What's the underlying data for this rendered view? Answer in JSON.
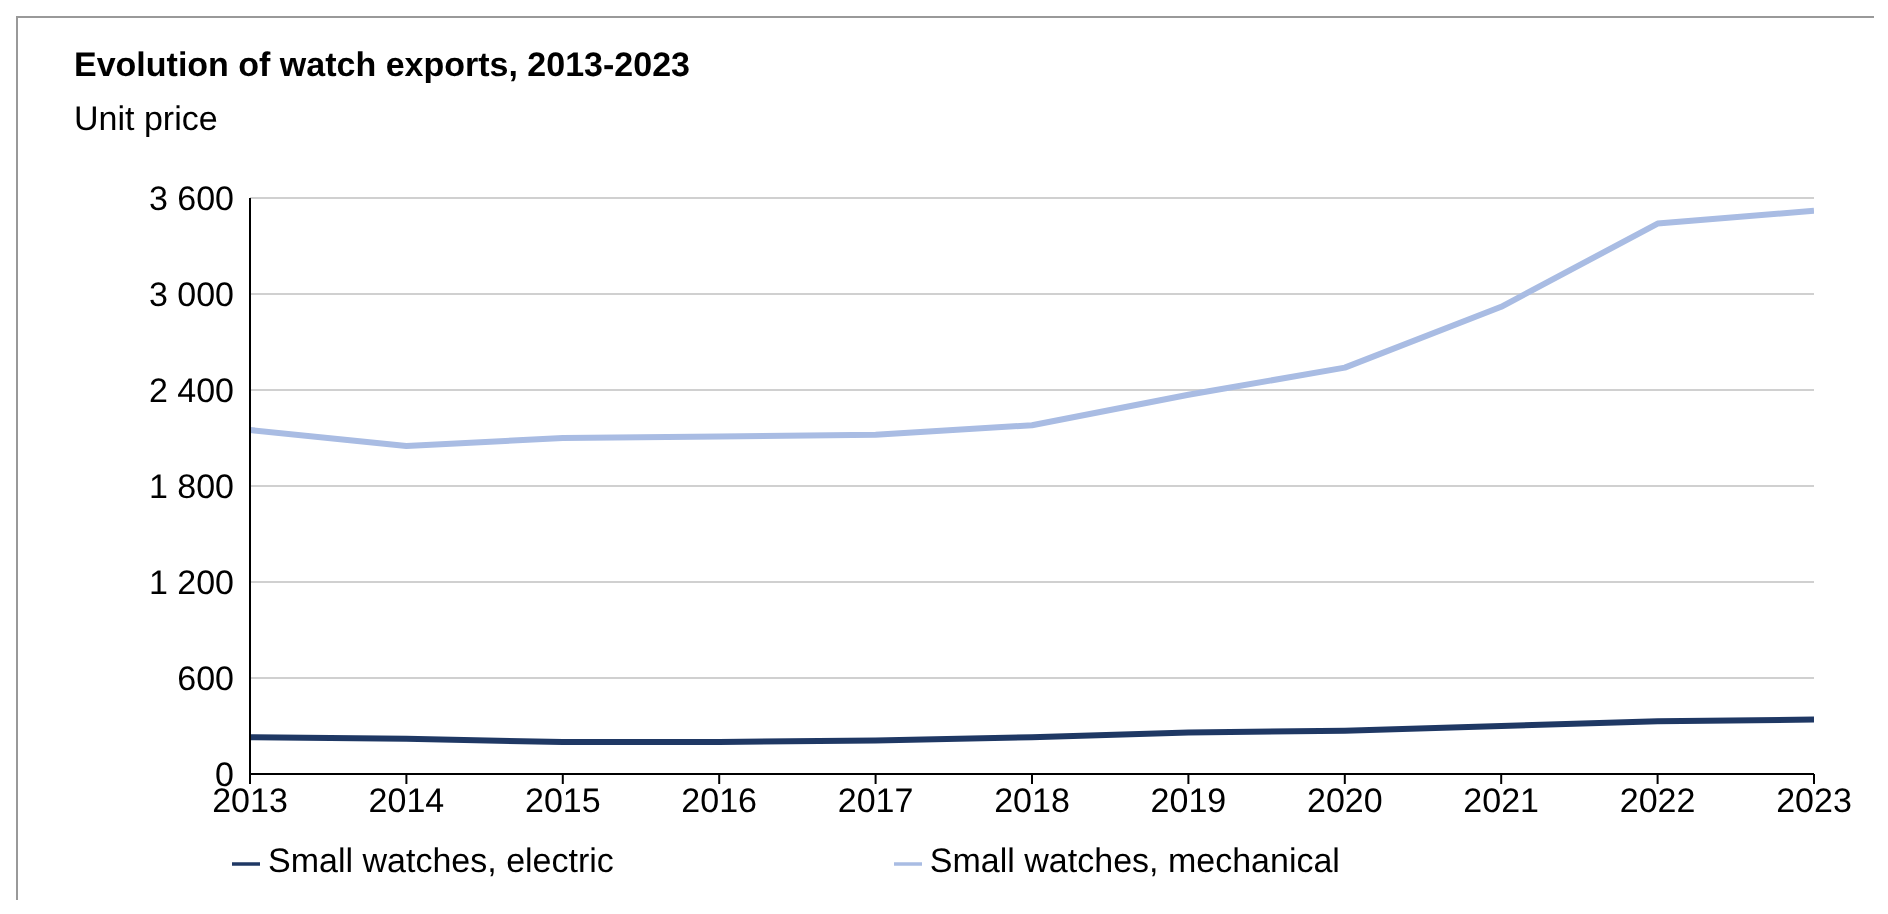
{
  "chart_data": {
    "type": "line",
    "title": "Evolution of watch exports, 2013-2023",
    "subtitle": "Unit price",
    "x": [
      2013,
      2014,
      2015,
      2016,
      2017,
      2018,
      2019,
      2020,
      2021,
      2022,
      2023
    ],
    "xlim": [
      2013,
      2023
    ],
    "xticks": [
      2013,
      2014,
      2015,
      2016,
      2017,
      2018,
      2019,
      2020,
      2021,
      2022,
      2023
    ],
    "ylim": [
      0,
      3600
    ],
    "yticks": [
      0,
      600,
      {
        "value": 1200,
        "label": "1 200"
      },
      {
        "value": 1800,
        "label": "1 800"
      },
      {
        "value": 2400,
        "label": "2 400"
      },
      {
        "value": 3000,
        "label": "3 000"
      },
      {
        "value": 3600,
        "label": "3 600"
      }
    ],
    "grid": "y",
    "legend": "bottom",
    "marker": "none",
    "line_style": "solid",
    "series": [
      {
        "name": "Small watches, electric",
        "color": "#1f3864",
        "values": [
          230,
          220,
          200,
          200,
          210,
          230,
          260,
          270,
          300,
          330,
          340
        ]
      },
      {
        "name": "Small watches, mechanical",
        "color": "#a9bce3",
        "values": [
          2150,
          2050,
          2100,
          2110,
          2120,
          2180,
          2370,
          2540,
          2920,
          3440,
          3520
        ]
      }
    ]
  }
}
